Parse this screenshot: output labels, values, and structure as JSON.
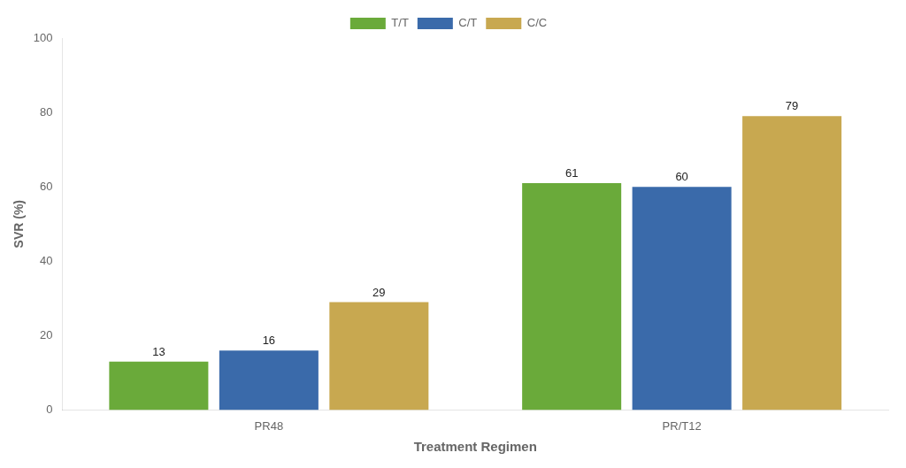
{
  "chart_data": {
    "type": "bar",
    "xlabel": "Treatment Regimen",
    "ylabel": "SVR (%)",
    "categories": [
      "PR48",
      "PR/T12"
    ],
    "series": [
      {
        "name": "T/T",
        "color": "#6aaa3a",
        "values": [
          13,
          61
        ]
      },
      {
        "name": "C/T",
        "color": "#3a6aaa",
        "values": [
          16,
          60
        ]
      },
      {
        "name": "C/C",
        "color": "#c8a850",
        "values": [
          29,
          79
        ]
      }
    ],
    "ylim": [
      0,
      100
    ],
    "yticks": [
      0,
      20,
      40,
      60,
      80,
      100
    ],
    "grid": false,
    "legend": "top",
    "data_labels": true
  }
}
